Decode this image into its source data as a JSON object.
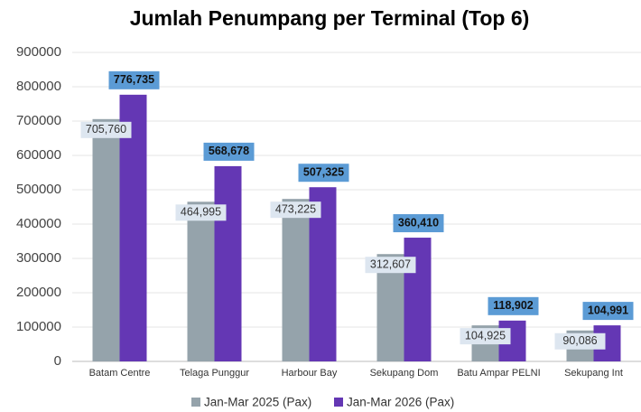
{
  "chart_data": {
    "type": "bar",
    "title": "Jumlah Penumpang per Terminal (Top 6)",
    "categories": [
      "Batam Centre",
      "Telaga Punggur",
      "Harbour Bay",
      "Sekupang Dom",
      "Batu Ampar PELNI",
      "Sekupang Int"
    ],
    "series": [
      {
        "name": "Jan-Mar 2025 (Pax)",
        "color": "#95a3ab",
        "values": [
          705760,
          464995,
          473225,
          312607,
          104925,
          90086
        ],
        "value_labels": [
          "705,760",
          "464,995",
          "473,225",
          "312,607",
          "104,925",
          "90,086"
        ]
      },
      {
        "name": "Jan-Mar 2026 (Pax)",
        "color": "#6437b4",
        "values": [
          776735,
          568678,
          507325,
          360410,
          118902,
          104991
        ],
        "value_labels": [
          "776,735",
          "568,678",
          "507,325",
          "360,410",
          "118,902",
          "104,991"
        ]
      }
    ],
    "ylim": [
      0,
      900000
    ],
    "yticks": [
      0,
      100000,
      200000,
      300000,
      400000,
      500000,
      600000,
      700000,
      800000,
      900000
    ],
    "grid": true,
    "legend": "bottom"
  }
}
